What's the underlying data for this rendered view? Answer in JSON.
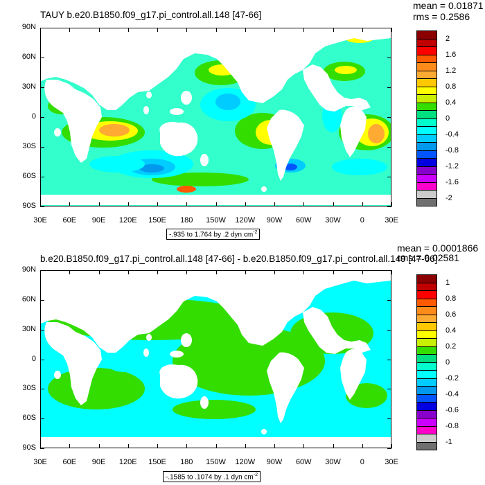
{
  "panel1": {
    "title": "TAUY b.e20.B1850.f09_g17.pi_control.all.148 [47-66]",
    "mean_text": "mean = 0.01871",
    "rms_text": "rms = 0.2586",
    "contour_info": "-.935 to 1.764 by .2 dyn cm",
    "contour_info_exp": "-2",
    "colorbar_labels": [
      "2",
      "1.6",
      "1.2",
      "0.8",
      "0.4",
      "0",
      "-0.4",
      "-0.8",
      "-1.2",
      "-1.6",
      "-2"
    ],
    "colors": [
      "#8b0000",
      "#c00000",
      "#ff0000",
      "#ff5a00",
      "#ff8c1a",
      "#ffaa33",
      "#ffc800",
      "#ffff00",
      "#c8f000",
      "#33dd00",
      "#00e080",
      "#00ffcc",
      "#00ffff",
      "#00ccff",
      "#0099ee",
      "#0055ff",
      "#0000e0",
      "#8800cc",
      "#cc00ff",
      "#ff00cc",
      "#cccccc",
      "#707070"
    ]
  },
  "panel2": {
    "title": "b.e20.B1850.f09_g17.pi_control.all.148 [47-66] - b.e20.B1850.f09_g17.pi_control.all.149 [47-66]",
    "mean_text": "mean = 0.0001866",
    "rms_text": "rms = 0.02581",
    "contour_info": "-.1585 to .1074 by .1 dyn cm",
    "contour_info_exp": "-2",
    "colorbar_labels": [
      "1",
      "0.8",
      "0.6",
      "0.4",
      "0.2",
      "0",
      "-0.2",
      "-0.4",
      "-0.6",
      "-0.8",
      "-1"
    ],
    "colors": [
      "#8b0000",
      "#c00000",
      "#ff0000",
      "#ff5a00",
      "#ff8c1a",
      "#ffaa33",
      "#ffc800",
      "#ffff00",
      "#c8f000",
      "#33dd00",
      "#00e080",
      "#00ffcc",
      "#00ffff",
      "#00ccff",
      "#0099ee",
      "#0055ff",
      "#0000e0",
      "#8800cc",
      "#cc00ff",
      "#ff00cc",
      "#cccccc",
      "#707070"
    ]
  },
  "axes": {
    "lat_labels": [
      "90N",
      "60N",
      "30N",
      "0",
      "30S",
      "60S",
      "90S"
    ],
    "lon_labels": [
      "30E",
      "60E",
      "90E",
      "120E",
      "150E",
      "180",
      "150W",
      "120W",
      "90W",
      "60W",
      "30W",
      "0",
      "30E"
    ]
  },
  "map_colors": {
    "ocean_base": "#33ffcc",
    "pos_light": "#33dd00",
    "pos_mid": "#ffff00",
    "pos_hi": "#ffaa33",
    "pos_peak": "#ff5a00",
    "neg_1": "#00ffff",
    "neg_2": "#00ccff",
    "neg_3": "#0099ee",
    "neg_4": "#0055ff",
    "land": "#ffffff"
  }
}
